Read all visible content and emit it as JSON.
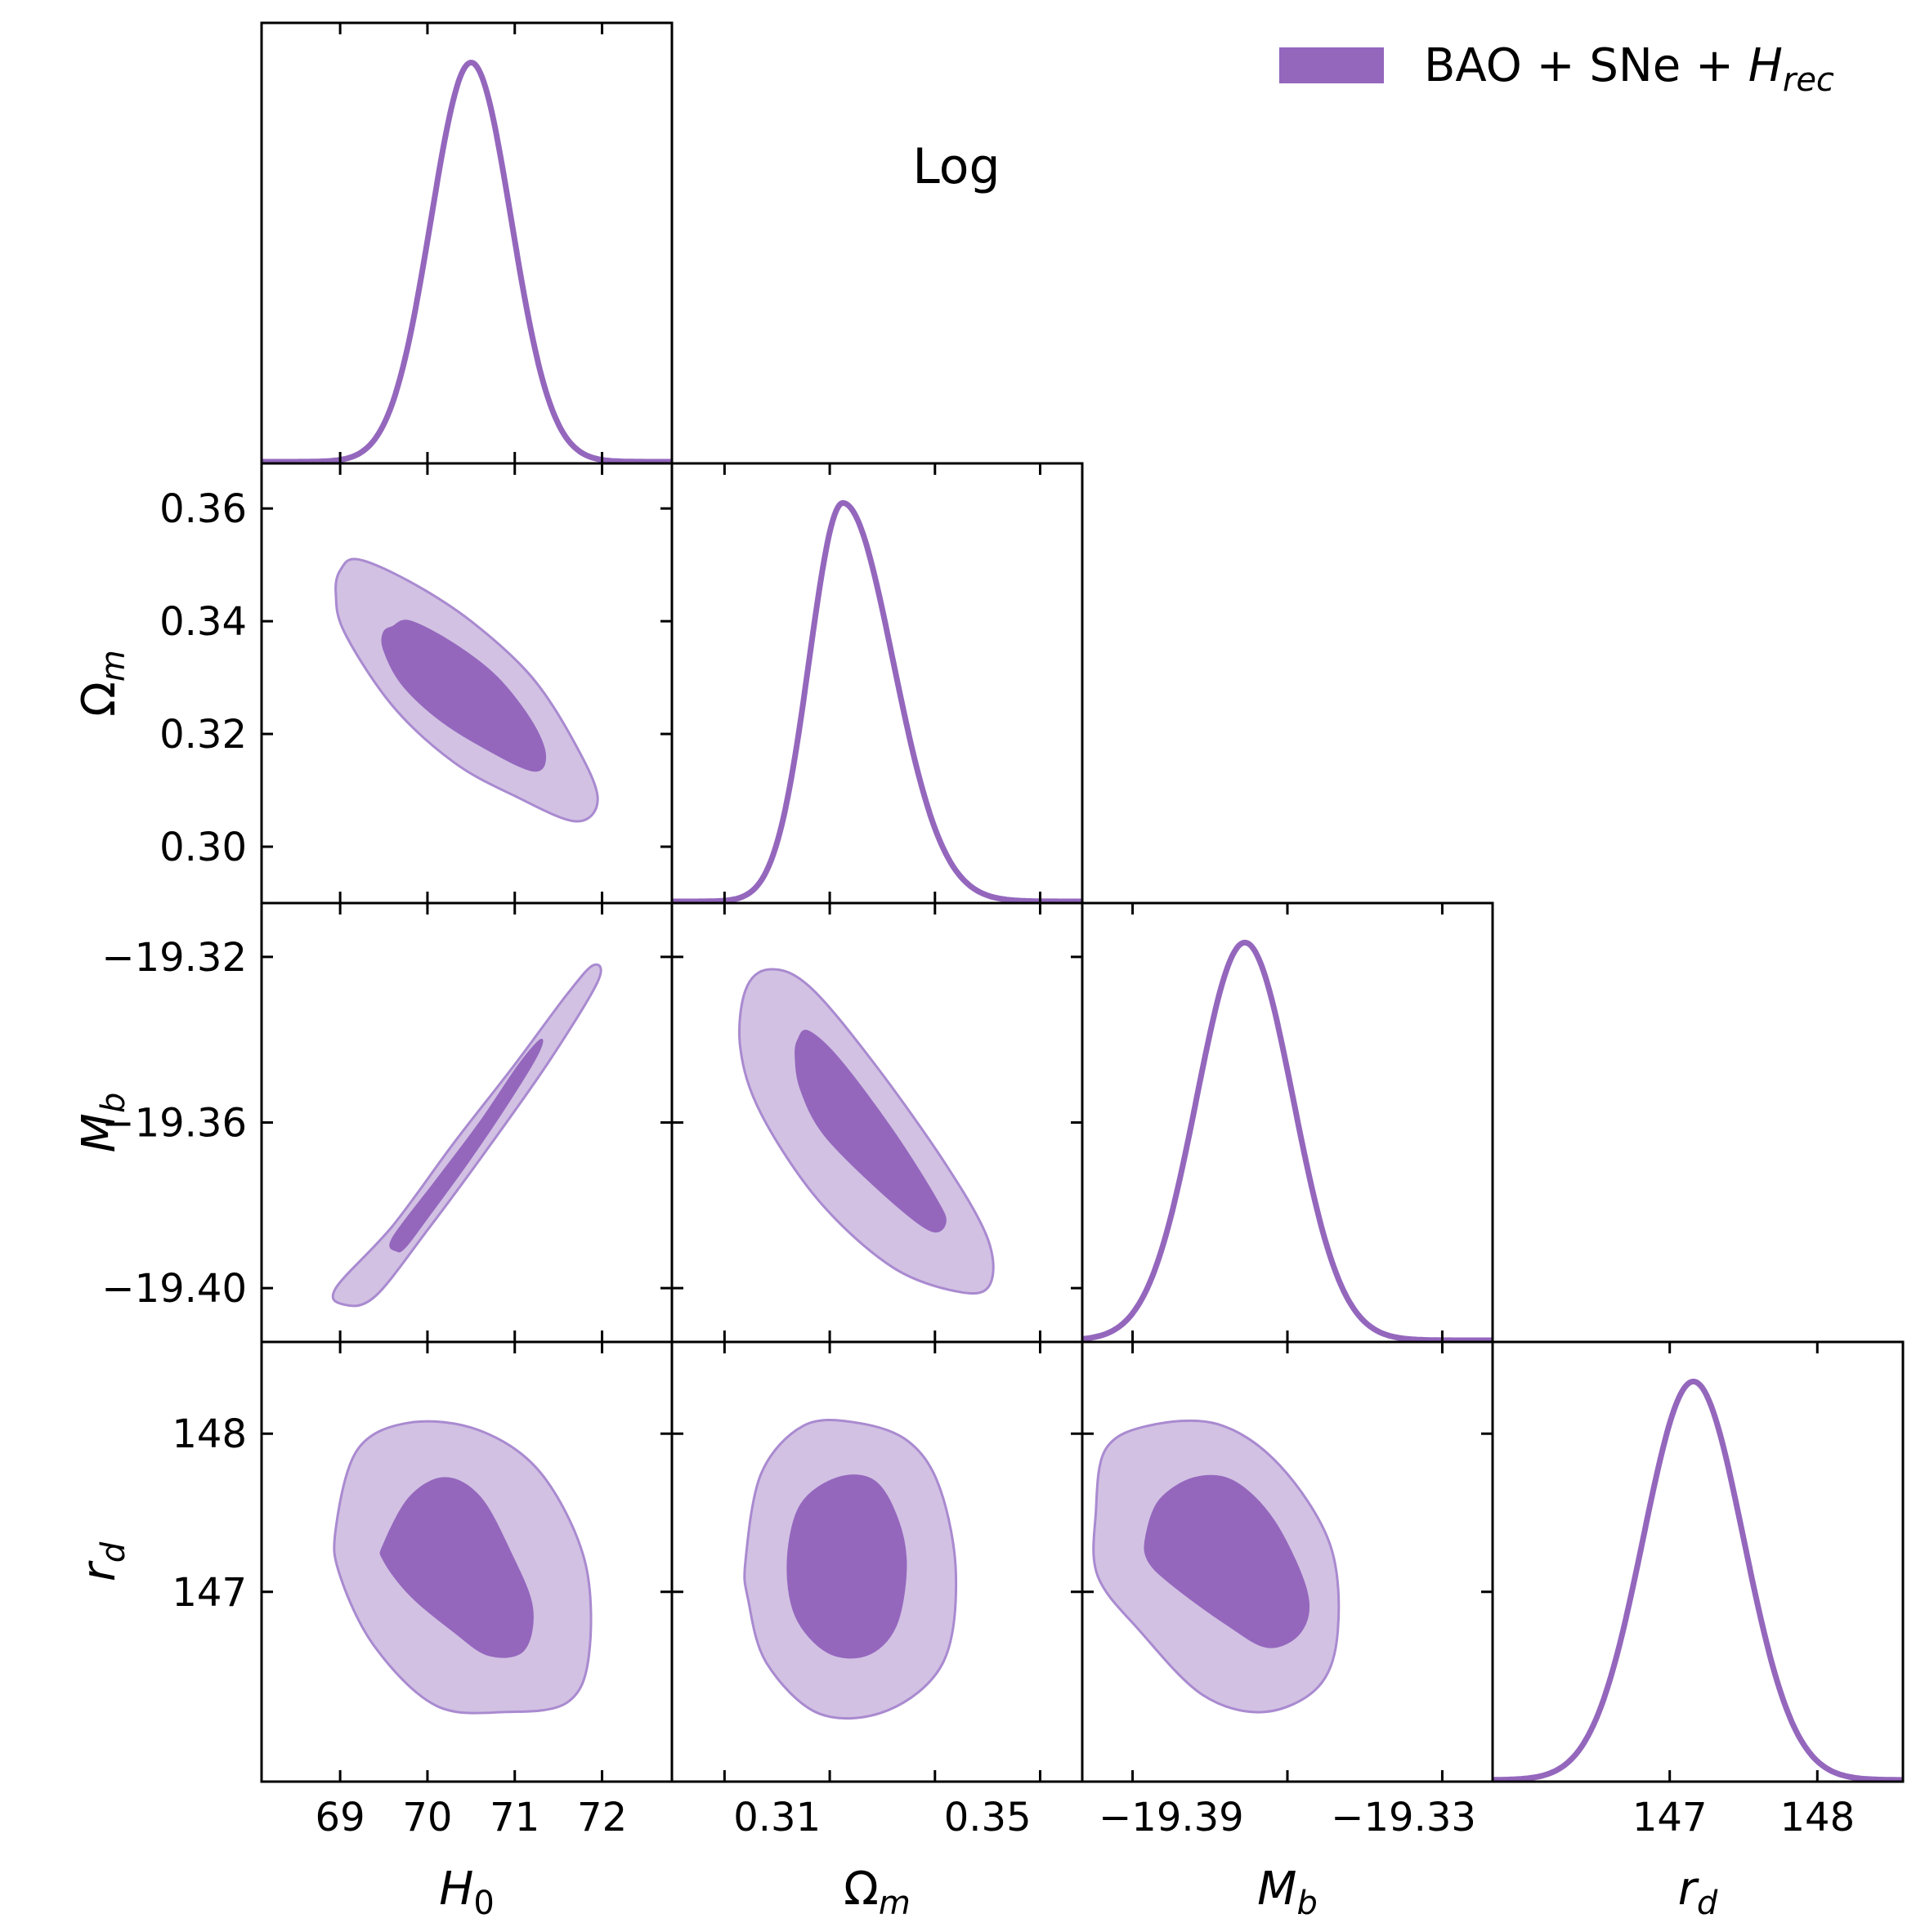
{
  "chart_data": {
    "type": "corner",
    "annotation": "Log",
    "legend": {
      "position": "top-right",
      "entries": [
        {
          "label_parts": [
            "BAO + SNe + ",
            "H",
            "rec"
          ],
          "color": "#9467bd"
        }
      ]
    },
    "colors": {
      "line": "#9467bd",
      "inner_fill": "#9467bd",
      "outer_fill": "#d2c1e3",
      "outer_edge": "#a98ad0",
      "frame": "#000000"
    },
    "parameters": [
      {
        "id": "H0",
        "symbol": "H",
        "sub": "0",
        "range": [
          68.1,
          72.8
        ],
        "ticks": [
          69,
          70,
          71,
          72
        ],
        "tick_labels": [
          "69",
          "70",
          "71",
          "72"
        ]
      },
      {
        "id": "Om",
        "symbol": "Ω",
        "sub": "m",
        "range": [
          0.29,
          0.368
        ],
        "ticks": [
          0.3,
          0.32,
          0.34,
          0.36
        ],
        "tick_labels": [
          "0.30",
          "0.32",
          "0.34",
          "0.36"
        ],
        "x_ticks": [
          0.31,
          0.35
        ],
        "x_tick_labels": [
          "0.31",
          "0.35"
        ]
      },
      {
        "id": "Mb",
        "symbol": "M",
        "sub": "b",
        "range": [
          -19.413,
          -19.307
        ],
        "ticks": [
          -19.4,
          -19.36,
          -19.32
        ],
        "tick_labels": [
          "−19.40",
          "−19.36",
          "−19.32"
        ],
        "x_ticks": [
          -19.39,
          -19.33
        ],
        "x_tick_labels": [
          "−19.39",
          "−19.33"
        ]
      },
      {
        "id": "rd",
        "symbol": "r",
        "sub": "d",
        "range": [
          145.8,
          148.58
        ],
        "ticks": [
          147,
          148
        ],
        "tick_labels": [
          "147",
          "148"
        ]
      }
    ],
    "marginals": [
      {
        "param": "H0",
        "mean": 70.5,
        "sigma": 0.46
      },
      {
        "param": "Om",
        "mean": 0.3225,
        "sigma_left": 0.0064,
        "sigma_right": 0.0095
      },
      {
        "param": "Mb",
        "mean": -19.371,
        "sigma": 0.0125
      },
      {
        "param": "rd",
        "mean": 147.16,
        "sigma": 0.34
      }
    ],
    "contours_2d": [
      {
        "x": "H0",
        "y": "Om",
        "inner_68": [
          [
            69.6,
            0.339
          ],
          [
            69.8,
            0.34
          ],
          [
            70.3,
            0.336
          ],
          [
            70.8,
            0.33
          ],
          [
            71.2,
            0.322
          ],
          [
            71.35,
            0.316
          ],
          [
            71.2,
            0.3135
          ],
          [
            70.6,
            0.318
          ],
          [
            70.1,
            0.323
          ],
          [
            69.7,
            0.329
          ],
          [
            69.5,
            0.335
          ],
          [
            69.5,
            0.338
          ]
        ],
        "outer_95": [
          [
            69.0,
            0.349
          ],
          [
            69.2,
            0.351
          ],
          [
            69.8,
            0.347
          ],
          [
            70.5,
            0.34
          ],
          [
            71.2,
            0.33
          ],
          [
            71.7,
            0.318
          ],
          [
            71.95,
            0.3085
          ],
          [
            71.7,
            0.3045
          ],
          [
            71.0,
            0.309
          ],
          [
            70.3,
            0.315
          ],
          [
            69.6,
            0.325
          ],
          [
            69.05,
            0.338
          ],
          [
            68.95,
            0.345
          ]
        ]
      },
      {
        "x": "H0",
        "y": "Mb",
        "inner_68": [
          [
            69.65,
            -19.391
          ],
          [
            69.6,
            -19.388
          ],
          [
            70.1,
            -19.374
          ],
          [
            70.6,
            -19.36
          ],
          [
            71.05,
            -19.346
          ],
          [
            71.3,
            -19.34
          ],
          [
            71.25,
            -19.344
          ],
          [
            70.9,
            -19.356
          ],
          [
            70.45,
            -19.37
          ],
          [
            70.0,
            -19.383
          ],
          [
            69.75,
            -19.39
          ]
        ],
        "outer_95": [
          [
            69.05,
            -19.404
          ],
          [
            68.95,
            -19.4
          ],
          [
            69.6,
            -19.385
          ],
          [
            70.3,
            -19.365
          ],
          [
            71.0,
            -19.346
          ],
          [
            71.6,
            -19.329
          ],
          [
            71.9,
            -19.322
          ],
          [
            71.95,
            -19.326
          ],
          [
            71.4,
            -19.345
          ],
          [
            70.7,
            -19.366
          ],
          [
            70.0,
            -19.386
          ],
          [
            69.4,
            -19.402
          ]
        ]
      },
      {
        "x": "Om",
        "y": "Mb",
        "inner_68": [
          [
            0.314,
            -19.34
          ],
          [
            0.316,
            -19.338
          ],
          [
            0.322,
            -19.345
          ],
          [
            0.332,
            -19.362
          ],
          [
            0.34,
            -19.378
          ],
          [
            0.342,
            -19.384
          ],
          [
            0.339,
            -19.386
          ],
          [
            0.33,
            -19.377
          ],
          [
            0.319,
            -19.363
          ],
          [
            0.3145,
            -19.352
          ],
          [
            0.3135,
            -19.344
          ]
        ],
        "outer_95": [
          [
            0.304,
            -19.328
          ],
          [
            0.3085,
            -19.323
          ],
          [
            0.316,
            -19.327
          ],
          [
            0.328,
            -19.345
          ],
          [
            0.342,
            -19.37
          ],
          [
            0.35,
            -19.388
          ],
          [
            0.3505,
            -19.399
          ],
          [
            0.345,
            -19.401
          ],
          [
            0.332,
            -19.395
          ],
          [
            0.318,
            -19.379
          ],
          [
            0.307,
            -19.358
          ],
          [
            0.303,
            -19.342
          ]
        ]
      },
      {
        "x": "H0",
        "y": "rd",
        "inner_68": [
          [
            69.5,
            147.3
          ],
          [
            69.8,
            147.6
          ],
          [
            70.2,
            147.72
          ],
          [
            70.6,
            147.6
          ],
          [
            70.95,
            147.25
          ],
          [
            71.2,
            146.9
          ],
          [
            71.1,
            146.63
          ],
          [
            70.7,
            146.6
          ],
          [
            70.3,
            146.75
          ],
          [
            69.8,
            146.98
          ],
          [
            69.5,
            147.2
          ]
        ],
        "outer_95": [
          [
            68.95,
            147.4
          ],
          [
            69.2,
            147.9
          ],
          [
            69.8,
            148.07
          ],
          [
            70.6,
            148.02
          ],
          [
            71.3,
            147.75
          ],
          [
            71.8,
            147.2
          ],
          [
            71.85,
            146.6
          ],
          [
            71.6,
            146.3
          ],
          [
            70.9,
            146.24
          ],
          [
            70.1,
            146.28
          ],
          [
            69.4,
            146.65
          ],
          [
            69.0,
            147.1
          ]
        ]
      },
      {
        "x": "Om",
        "y": "rd",
        "inner_68": [
          [
            0.312,
            147.2
          ],
          [
            0.3145,
            147.55
          ],
          [
            0.3215,
            147.72
          ],
          [
            0.3285,
            147.7
          ],
          [
            0.333,
            147.45
          ],
          [
            0.3345,
            147.15
          ],
          [
            0.3325,
            146.78
          ],
          [
            0.327,
            146.6
          ],
          [
            0.3195,
            146.62
          ],
          [
            0.3135,
            146.85
          ]
        ],
        "outer_95": [
          [
            0.304,
            147.2
          ],
          [
            0.307,
            147.75
          ],
          [
            0.315,
            148.05
          ],
          [
            0.325,
            148.07
          ],
          [
            0.335,
            147.95
          ],
          [
            0.341,
            147.65
          ],
          [
            0.344,
            147.1
          ],
          [
            0.3415,
            146.55
          ],
          [
            0.331,
            146.25
          ],
          [
            0.318,
            146.23
          ],
          [
            0.308,
            146.55
          ],
          [
            0.3045,
            146.95
          ]
        ]
      },
      {
        "x": "Mb",
        "y": "rd",
        "inner_68": [
          [
            -19.3965,
            147.35
          ],
          [
            -19.393,
            147.58
          ],
          [
            -19.384,
            147.72
          ],
          [
            -19.374,
            147.7
          ],
          [
            -19.3635,
            147.45
          ],
          [
            -19.355,
            147.0
          ],
          [
            -19.3565,
            146.75
          ],
          [
            -19.365,
            146.65
          ],
          [
            -19.376,
            146.8
          ],
          [
            -19.39,
            147.05
          ],
          [
            -19.396,
            147.2
          ]
        ],
        "outer_95": [
          [
            -19.4095,
            147.5
          ],
          [
            -19.407,
            147.9
          ],
          [
            -19.396,
            148.05
          ],
          [
            -19.378,
            148.06
          ],
          [
            -19.362,
            147.8
          ],
          [
            -19.349,
            147.3
          ],
          [
            -19.347,
            146.75
          ],
          [
            -19.352,
            146.4
          ],
          [
            -19.366,
            146.24
          ],
          [
            -19.382,
            146.35
          ],
          [
            -19.398,
            146.75
          ],
          [
            -19.409,
            147.1
          ]
        ]
      }
    ]
  }
}
